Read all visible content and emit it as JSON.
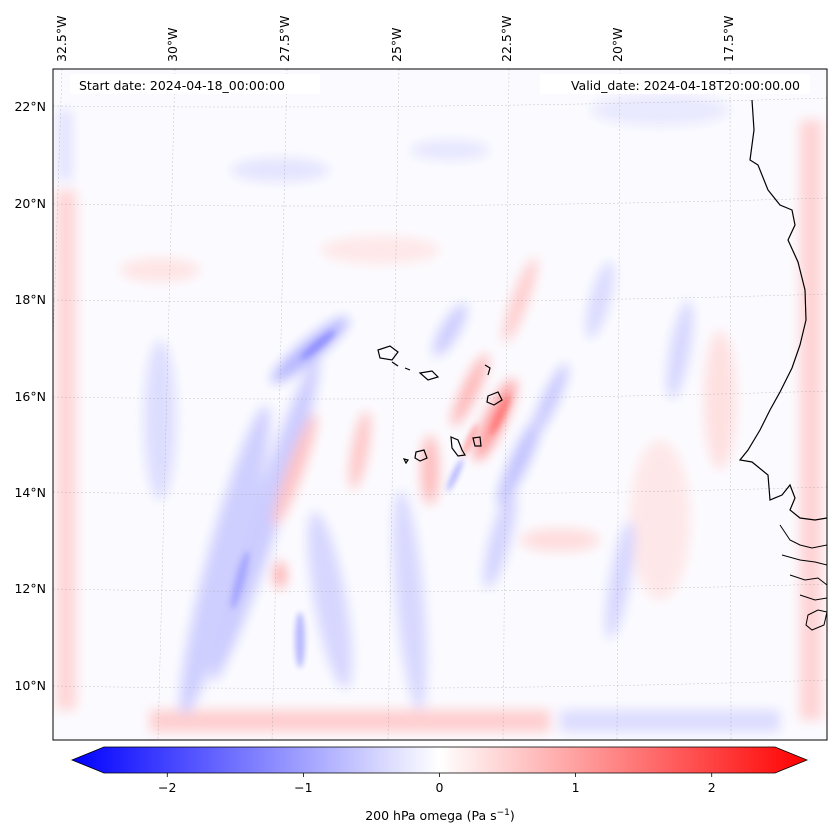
{
  "header": {
    "start_date": "Start date: 2024-04-18_00:00:00",
    "valid_date": "Valid_date: 2024-04-18T20:00:00.00"
  },
  "map": {
    "lon_labels": [
      "32.5°W",
      "30°W",
      "27.5°W",
      "25°W",
      "22.5°W",
      "20°W",
      "17.5°W"
    ],
    "lat_labels": [
      "22°N",
      "20°N",
      "18°N",
      "16°N",
      "14°N",
      "12°N",
      "10°N"
    ],
    "field_colors": {
      "negative": "#0000ff",
      "zero": "#ffffff",
      "positive": "#ff0000"
    }
  },
  "colorbar": {
    "label": "200 hPa omega (Pa s",
    "label_sup": "−1",
    "label_close": ")",
    "ticks": [
      "−2",
      "−1",
      "0",
      "1",
      "2"
    ],
    "range": [
      -2.7,
      2.7
    ]
  }
}
